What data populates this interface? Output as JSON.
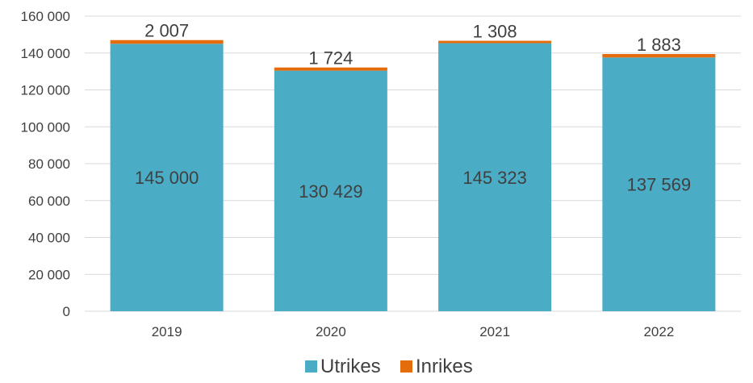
{
  "chart_data": {
    "type": "bar",
    "stacked": true,
    "categories": [
      "2019",
      "2020",
      "2021",
      "2022"
    ],
    "series": [
      {
        "name": "Utrikes",
        "values": [
          145000,
          130429,
          145323,
          137569
        ],
        "labels": [
          "145 000",
          "130 429",
          "145 323",
          "137 569"
        ],
        "color": "#4BACC6"
      },
      {
        "name": "Inrikes",
        "values": [
          2007,
          1724,
          1308,
          1883
        ],
        "labels": [
          "2 007",
          "1 724",
          "1 308",
          "1 883"
        ],
        "color": "#E46C0A"
      }
    ],
    "ylim": [
      0,
      160000
    ],
    "yticks": [
      0,
      20000,
      40000,
      60000,
      80000,
      100000,
      120000,
      140000,
      160000
    ],
    "ytick_labels": [
      "0",
      "20 000",
      "40 000",
      "60 000",
      "80 000",
      "100 000",
      "120 000",
      "140 000",
      "160 000"
    ],
    "grid": true,
    "legend_position": "bottom",
    "gridline_color": "#D9D9D9"
  }
}
